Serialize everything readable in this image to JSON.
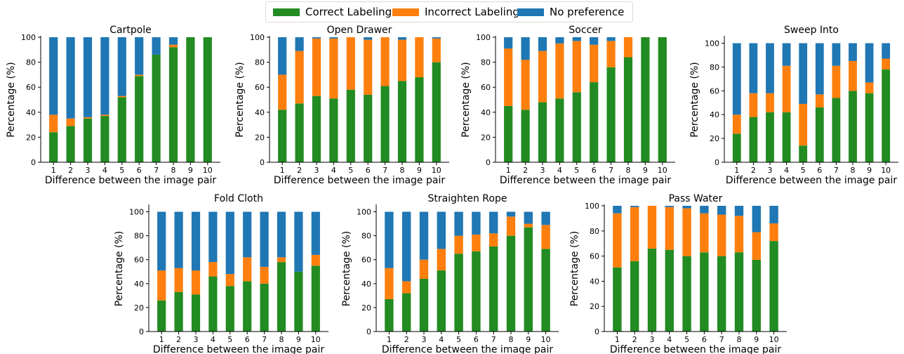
{
  "legend": {
    "correct": "Correct Labeling",
    "incorrect": "Incorrect Labeling",
    "nopref": "No preference"
  },
  "colors": {
    "correct": "#228b22",
    "incorrect": "#ff7f0e",
    "nopref": "#1f77b4"
  },
  "chart_data": [
    {
      "type": "bar",
      "stacked": true,
      "title": "Cartpole",
      "xlabel": "Difference between the image pair",
      "ylabel": "Percentage (%)",
      "categories": [
        "1",
        "2",
        "3",
        "4",
        "5",
        "6",
        "7",
        "8",
        "9",
        "10"
      ],
      "ylim": [
        0,
        100
      ],
      "yticks": [
        0,
        20,
        40,
        60,
        80,
        100
      ],
      "series": [
        {
          "name": "Correct Labeling",
          "values": [
            24,
            29,
            35,
            37,
            52,
            69,
            86,
            92,
            100,
            100
          ]
        },
        {
          "name": "Incorrect Labeling",
          "values": [
            14,
            6,
            1,
            1,
            1,
            1,
            0,
            2,
            0,
            0
          ]
        },
        {
          "name": "No preference",
          "values": [
            62,
            65,
            64,
            62,
            47,
            30,
            14,
            6,
            0,
            0
          ]
        }
      ]
    },
    {
      "type": "bar",
      "stacked": true,
      "title": "Open Drawer",
      "xlabel": "Difference between the image pair",
      "ylabel": "Percentage (%)",
      "categories": [
        "1",
        "2",
        "3",
        "4",
        "5",
        "6",
        "7",
        "8",
        "9",
        "10"
      ],
      "ylim": [
        0,
        100
      ],
      "yticks": [
        0,
        20,
        40,
        60,
        80,
        100
      ],
      "series": [
        {
          "name": "Correct Labeling",
          "values": [
            42,
            47,
            53,
            51,
            58,
            54,
            61,
            65,
            68,
            80
          ]
        },
        {
          "name": "Incorrect Labeling",
          "values": [
            28,
            42,
            46,
            48,
            42,
            44,
            39,
            33,
            32,
            19
          ]
        },
        {
          "name": "No preference",
          "values": [
            30,
            11,
            1,
            1,
            0,
            2,
            0,
            2,
            0,
            1
          ]
        }
      ]
    },
    {
      "type": "bar",
      "stacked": true,
      "title": "Soccer",
      "xlabel": "Difference between the image pair",
      "ylabel": "Percentage (%)",
      "categories": [
        "1",
        "2",
        "3",
        "4",
        "5",
        "6",
        "7",
        "8",
        "9",
        "10"
      ],
      "ylim": [
        0,
        100
      ],
      "yticks": [
        0,
        20,
        40,
        60,
        80,
        100
      ],
      "series": [
        {
          "name": "Correct Labeling",
          "values": [
            45,
            42,
            48,
            51,
            56,
            64,
            76,
            84,
            100,
            100
          ]
        },
        {
          "name": "Incorrect Labeling",
          "values": [
            46,
            40,
            41,
            44,
            41,
            30,
            21,
            16,
            0,
            0
          ]
        },
        {
          "name": "No preference",
          "values": [
            9,
            18,
            11,
            5,
            3,
            6,
            3,
            0,
            0,
            0
          ]
        }
      ]
    },
    {
      "type": "bar",
      "stacked": true,
      "title": "Sweep Into",
      "xlabel": "Difference between the image pair",
      "ylabel": "Percentage (%)",
      "categories": [
        "1",
        "2",
        "3",
        "4",
        "5",
        "6",
        "7",
        "8",
        "9",
        "10"
      ],
      "ylim": [
        0,
        105
      ],
      "yticks": [
        0,
        20,
        40,
        60,
        80,
        100
      ],
      "series": [
        {
          "name": "Correct Labeling",
          "values": [
            24,
            38,
            42,
            42,
            14,
            46,
            54,
            60,
            58,
            78
          ]
        },
        {
          "name": "Incorrect Labeling",
          "values": [
            16,
            20,
            16,
            39,
            35,
            11,
            27,
            25,
            9,
            9
          ]
        },
        {
          "name": "No preference",
          "values": [
            60,
            42,
            42,
            19,
            51,
            43,
            19,
            15,
            33,
            13
          ]
        }
      ]
    },
    {
      "type": "bar",
      "stacked": true,
      "title": "Fold Cloth",
      "xlabel": "Difference between the image pair",
      "ylabel": "Percentage (%)",
      "categories": [
        "1",
        "2",
        "3",
        "4",
        "5",
        "6",
        "7",
        "8",
        "9",
        "10"
      ],
      "ylim": [
        0,
        105
      ],
      "yticks": [
        0,
        20,
        40,
        60,
        80,
        100
      ],
      "series": [
        {
          "name": "Correct Labeling",
          "values": [
            26,
            33,
            31,
            46,
            38,
            42,
            40,
            58,
            50,
            55
          ]
        },
        {
          "name": "Incorrect Labeling",
          "values": [
            25,
            20,
            20,
            12,
            10,
            20,
            14,
            4,
            0,
            9
          ]
        },
        {
          "name": "No preference",
          "values": [
            49,
            47,
            49,
            42,
            52,
            38,
            46,
            38,
            50,
            36
          ]
        }
      ]
    },
    {
      "type": "bar",
      "stacked": true,
      "title": "Straighten Rope",
      "xlabel": "Difference between the image pair",
      "ylabel": "Percentage (%)",
      "categories": [
        "1",
        "2",
        "3",
        "4",
        "5",
        "6",
        "7",
        "8",
        "9",
        "10"
      ],
      "ylim": [
        0,
        105
      ],
      "yticks": [
        0,
        20,
        40,
        60,
        80,
        100
      ],
      "series": [
        {
          "name": "Correct Labeling",
          "values": [
            27,
            32,
            44,
            51,
            65,
            67,
            71,
            80,
            87,
            69
          ]
        },
        {
          "name": "Incorrect Labeling",
          "values": [
            26,
            10,
            16,
            18,
            15,
            14,
            11,
            16,
            3,
            20
          ]
        },
        {
          "name": "No preference",
          "values": [
            47,
            58,
            40,
            31,
            20,
            19,
            18,
            4,
            10,
            11
          ]
        }
      ]
    },
    {
      "type": "bar",
      "stacked": true,
      "title": "Pass Water",
      "xlabel": "Difference between the image pair",
      "ylabel": "Percentage (%)",
      "categories": [
        "1",
        "2",
        "3",
        "4",
        "5",
        "6",
        "7",
        "8",
        "9",
        "10"
      ],
      "ylim": [
        0,
        100
      ],
      "yticks": [
        0,
        20,
        40,
        60,
        80,
        100
      ],
      "series": [
        {
          "name": "Correct Labeling",
          "values": [
            51,
            56,
            66,
            65,
            60,
            63,
            60,
            63,
            57,
            72
          ]
        },
        {
          "name": "Incorrect Labeling",
          "values": [
            43,
            43,
            34,
            34,
            38,
            31,
            33,
            29,
            22,
            14
          ]
        },
        {
          "name": "No preference",
          "values": [
            6,
            1,
            0,
            1,
            2,
            6,
            7,
            8,
            21,
            14
          ]
        }
      ]
    }
  ]
}
